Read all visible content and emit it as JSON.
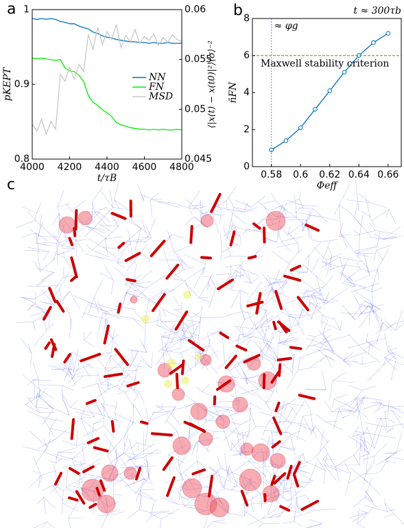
{
  "chart_data": [
    {
      "type": "line",
      "panel": "a",
      "x_label": "t/τB",
      "y_label": "pKEPT",
      "y2_label": "⟨|x(t) − x(t0)|²⟩⟨σ⟩⁻²",
      "y_color": "#0072bd",
      "y2_color": "#d95319",
      "x": [
        4000,
        4025,
        4050,
        4075,
        4100,
        4125,
        4150,
        4175,
        4200,
        4225,
        4250,
        4275,
        4300,
        4325,
        4350,
        4375,
        4400,
        4425,
        4450,
        4475,
        4500,
        4525,
        4550,
        4575,
        4600,
        4625,
        4650,
        4675,
        4700,
        4725,
        4750,
        4775,
        4800
      ],
      "series": [
        {
          "name": "NN",
          "color": "#0072bd",
          "values": [
            0.988,
            0.987,
            0.988,
            0.987,
            0.988,
            0.987,
            0.984,
            0.983,
            0.981,
            0.981,
            0.978,
            0.976,
            0.974,
            0.97,
            0.968,
            0.965,
            0.963,
            0.962,
            0.96,
            0.959,
            0.958,
            0.957,
            0.957,
            0.956,
            0.956,
            0.955,
            0.956,
            0.955,
            0.955,
            0.956,
            0.955,
            0.955,
            0.955
          ]
        },
        {
          "name": "FN",
          "color": "#00ee00",
          "values": [
            0.935,
            0.934,
            0.935,
            0.934,
            0.933,
            0.932,
            0.933,
            0.922,
            0.918,
            0.917,
            0.912,
            0.904,
            0.885,
            0.876,
            0.872,
            0.866,
            0.862,
            0.857,
            0.849,
            0.846,
            0.844,
            0.842,
            0.841,
            0.84,
            0.84,
            0.839,
            0.84,
            0.839,
            0.84,
            0.839,
            0.839,
            0.84,
            0.839
          ]
        },
        {
          "name": "MSD",
          "color": "#c8c8c8",
          "axis": "y2",
          "values": [
            0.0485,
            0.0478,
            0.049,
            0.0475,
            0.0488,
            0.048,
            0.0535,
            0.0528,
            0.0542,
            0.053,
            0.0545,
            0.0538,
            0.0575,
            0.056,
            0.0582,
            0.0565,
            0.0578,
            0.057,
            0.0585,
            0.0562,
            0.0574,
            0.0568,
            0.058,
            0.0566,
            0.0573,
            0.0569,
            0.0576,
            0.0564,
            0.0572,
            0.0567,
            0.0575,
            0.057,
            0.0568
          ]
        }
      ],
      "xlim": [
        4000,
        4800
      ],
      "xticks": [
        4000,
        4200,
        4400,
        4600,
        4800
      ],
      "ylim": [
        0.8,
        1
      ],
      "yticks": [
        0.8,
        0.9,
        1
      ],
      "y2lim": [
        0.045,
        0.06
      ],
      "y2ticks": [
        0.045,
        0.05,
        0.055,
        0.06
      ],
      "legend": "center-right"
    },
    {
      "type": "line",
      "panel": "b",
      "title": "t ≈ 300τb",
      "x_label": "Φeff",
      "y_label": "n̄FN",
      "markers": true,
      "x": [
        0.58,
        0.59,
        0.6,
        0.61,
        0.62,
        0.63,
        0.64,
        0.65,
        0.66
      ],
      "series": [
        {
          "color": "#0072bd",
          "values": [
            0.9,
            1.4,
            2.1,
            3.1,
            4.1,
            5.1,
            6.0,
            6.7,
            7.2
          ]
        }
      ],
      "xlim": [
        0.567,
        0.669
      ],
      "xticks": [
        0.58,
        0.6,
        0.62,
        0.64,
        0.66
      ],
      "ylim": [
        0,
        8
      ],
      "yticks": [
        0,
        2,
        4,
        6,
        8
      ],
      "hline": {
        "value": 6,
        "label": "Maxwell stability criterion",
        "color": "#8a9a2a"
      },
      "vline": {
        "value": 0.58,
        "label": "≈ φg",
        "color": "#33bbee"
      }
    }
  ],
  "panel_c": {
    "panel": "c"
  }
}
